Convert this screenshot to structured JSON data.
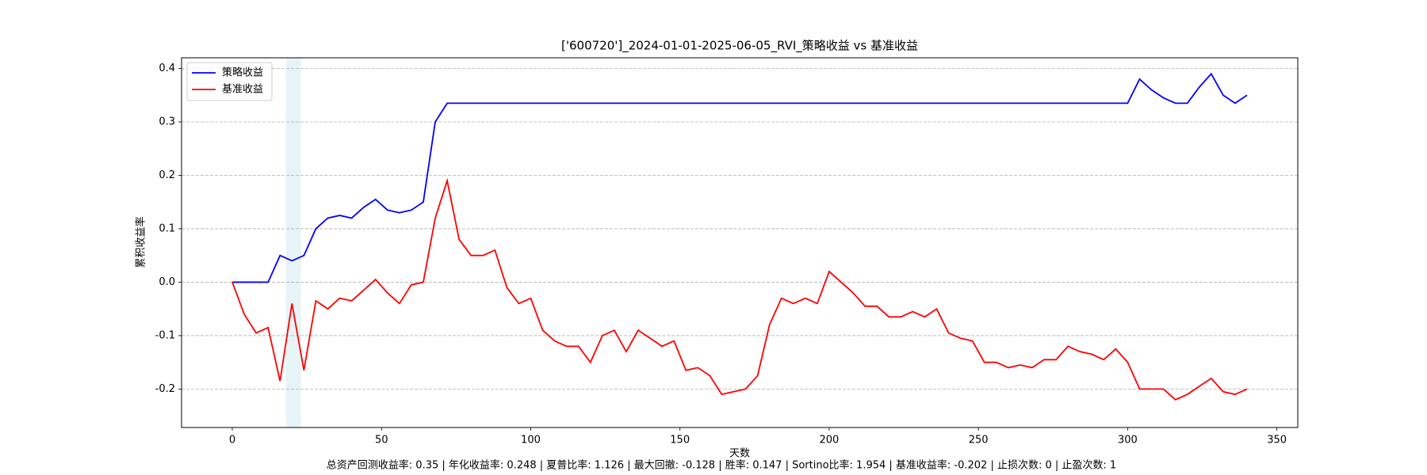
{
  "chart_data": {
    "type": "line",
    "title": "['600720']_2024-01-01-2025-06-05_RVI_策略收益 vs 基准收益",
    "x_label": "天数",
    "y_label": "累积收益率",
    "footer": "总资产回测收益率: 0.35 | 年化收益率: 0.248 | 夏普比率: 1.126 | 最大回撤: -0.128 | 胜率: 0.147 | Sortino比率: 1.954 | 基准收益率: -0.202 | 止损次数: 0 | 止盈次数: 1",
    "x": [
      0,
      4,
      8,
      12,
      16,
      20,
      24,
      28,
      32,
      36,
      40,
      44,
      48,
      52,
      56,
      60,
      64,
      68,
      72,
      76,
      80,
      84,
      88,
      92,
      96,
      100,
      104,
      108,
      112,
      116,
      120,
      124,
      128,
      132,
      136,
      140,
      144,
      148,
      152,
      156,
      160,
      164,
      168,
      172,
      176,
      180,
      184,
      188,
      192,
      196,
      200,
      204,
      208,
      212,
      216,
      220,
      224,
      228,
      232,
      236,
      240,
      244,
      248,
      252,
      256,
      260,
      264,
      268,
      272,
      276,
      280,
      284,
      288,
      292,
      296,
      300,
      304,
      308,
      312,
      316,
      320,
      324,
      328,
      332,
      336,
      340
    ],
    "series": [
      {
        "name": "策略收益",
        "color": "#0000ff",
        "values": [
          0,
          0,
          0,
          0,
          0.05,
          0.04,
          0.05,
          0.1,
          0.12,
          0.125,
          0.12,
          0.14,
          0.155,
          0.135,
          0.13,
          0.135,
          0.15,
          0.3,
          0.335,
          0.335,
          0.335,
          0.335,
          0.335,
          0.335,
          0.335,
          0.335,
          0.335,
          0.335,
          0.335,
          0.335,
          0.335,
          0.335,
          0.335,
          0.335,
          0.335,
          0.335,
          0.335,
          0.335,
          0.335,
          0.335,
          0.335,
          0.335,
          0.335,
          0.335,
          0.335,
          0.335,
          0.335,
          0.335,
          0.335,
          0.335,
          0.335,
          0.335,
          0.335,
          0.335,
          0.335,
          0.335,
          0.335,
          0.335,
          0.335,
          0.335,
          0.335,
          0.335,
          0.335,
          0.335,
          0.335,
          0.335,
          0.335,
          0.335,
          0.335,
          0.335,
          0.335,
          0.335,
          0.335,
          0.335,
          0.335,
          0.335,
          0.38,
          0.36,
          0.345,
          0.335,
          0.335,
          0.365,
          0.39,
          0.35,
          0.335,
          0.35
        ]
      },
      {
        "name": "基准收益",
        "color": "#ff0000",
        "values": [
          0,
          -0.06,
          -0.095,
          -0.085,
          -0.185,
          -0.04,
          -0.165,
          -0.035,
          -0.05,
          -0.03,
          -0.035,
          -0.015,
          0.005,
          -0.02,
          -0.04,
          -0.005,
          0.0,
          0.12,
          0.19,
          0.08,
          0.05,
          0.05,
          0.06,
          -0.01,
          -0.04,
          -0.03,
          -0.09,
          -0.11,
          -0.12,
          -0.12,
          -0.15,
          -0.1,
          -0.09,
          -0.13,
          -0.09,
          -0.105,
          -0.12,
          -0.11,
          -0.165,
          -0.16,
          -0.175,
          -0.21,
          -0.205,
          -0.2,
          -0.175,
          -0.08,
          -0.03,
          -0.04,
          -0.03,
          -0.04,
          0.02,
          0.0,
          -0.02,
          -0.045,
          -0.045,
          -0.065,
          -0.065,
          -0.055,
          -0.065,
          -0.05,
          -0.095,
          -0.105,
          -0.11,
          -0.15,
          -0.15,
          -0.16,
          -0.155,
          -0.16,
          -0.145,
          -0.145,
          -0.12,
          -0.13,
          -0.135,
          -0.145,
          -0.125,
          -0.15,
          -0.2,
          -0.2,
          -0.2,
          -0.22,
          -0.21,
          -0.195,
          -0.18,
          -0.205,
          -0.21,
          -0.2
        ]
      }
    ],
    "highlight_span": [
      18,
      23
    ],
    "highlight_color": "#add8e6",
    "xlim": [
      -17,
      357
    ],
    "ylim": [
      -0.272,
      0.42
    ],
    "xticks": [
      0,
      50,
      100,
      150,
      200,
      250,
      300,
      350
    ],
    "yticks": [
      -0.2,
      -0.1,
      {
        "value": 0,
        "label": "0.0"
      },
      0.1,
      0.2,
      0.3,
      0.4
    ],
    "grid": "y",
    "legend": "upper left"
  }
}
